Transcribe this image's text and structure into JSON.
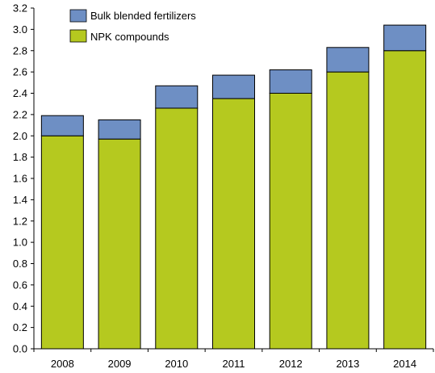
{
  "chart_data": {
    "type": "bar",
    "stacked": true,
    "categories": [
      "2008",
      "2009",
      "2010",
      "2011",
      "2012",
      "2013",
      "2014"
    ],
    "series": [
      {
        "name": "NPK compounds",
        "color": "#b5c91f",
        "values": [
          2.0,
          1.97,
          2.26,
          2.35,
          2.4,
          2.6,
          2.8
        ]
      },
      {
        "name": "Bulk blended fertilizers",
        "color": "#6e8fc4",
        "values": [
          0.19,
          0.18,
          0.21,
          0.22,
          0.22,
          0.23,
          0.24
        ]
      }
    ],
    "ylim": [
      0,
      3.2
    ],
    "yticks": [
      "0.0",
      "0.2",
      "0.4",
      "0.6",
      "0.8",
      "1.0",
      "1.2",
      "1.4",
      "1.6",
      "1.8",
      "2.0",
      "2.2",
      "2.4",
      "2.6",
      "2.8",
      "3.0",
      "3.2"
    ],
    "legend": {
      "position": "top-left",
      "entries": [
        "Bulk blended fertilizers",
        "NPK compounds"
      ]
    },
    "title": "",
    "xlabel": "",
    "ylabel": "",
    "grid": false
  }
}
